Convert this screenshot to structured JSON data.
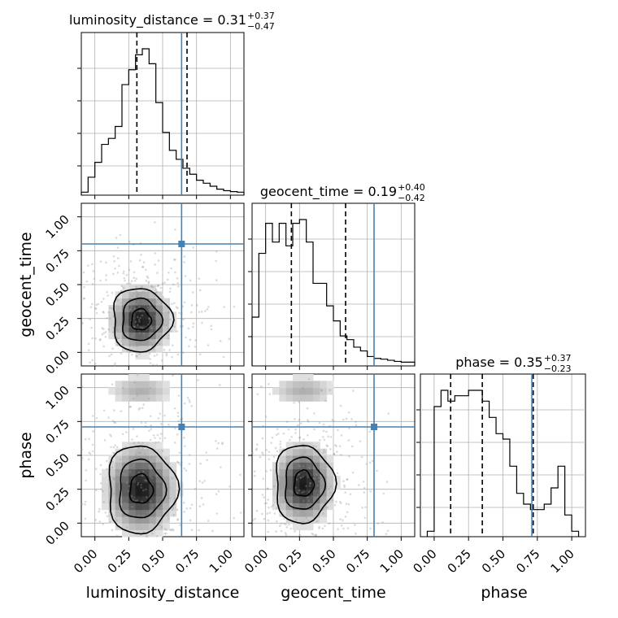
{
  "chart_data": {
    "type": "corner",
    "parameters": [
      "luminosity_distance",
      "geocent_time",
      "phase"
    ],
    "axis_range": [
      -0.1,
      1.1
    ],
    "tick_labels": [
      "0.00",
      "0.25",
      "0.50",
      "0.75",
      "1.00"
    ],
    "tick_values": [
      0.0,
      0.25,
      0.5,
      0.75,
      1.0
    ],
    "grid": true,
    "truth_color": "#4682b4",
    "truths": {
      "luminosity_distance": 0.64,
      "geocent_time": 0.8,
      "phase": 0.71
    },
    "titles": [
      {
        "param": "luminosity_distance",
        "text": "luminosity_distance = 0.31",
        "plus": "+0.37",
        "minus": "−0.47"
      },
      {
        "param": "geocent_time",
        "text": "geocent_time = 0.19",
        "plus": "+0.40",
        "minus": "−0.42"
      },
      {
        "param": "phase",
        "text": "phase = 0.35",
        "plus": "+0.37",
        "minus": "−0.23"
      }
    ],
    "marginals": [
      {
        "param": "luminosity_distance",
        "quantiles": [
          0.31,
          0.68
        ],
        "bin_edges": [
          -0.1,
          -0.05,
          0.0,
          0.05,
          0.1,
          0.15,
          0.2,
          0.25,
          0.3,
          0.35,
          0.4,
          0.45,
          0.5,
          0.55,
          0.6,
          0.65,
          0.7,
          0.75,
          0.8,
          0.85,
          0.9,
          0.95,
          1.0,
          1.05,
          1.1
        ],
        "counts": [
          1,
          6,
          11,
          17,
          19,
          23,
          37,
          42,
          47,
          49,
          44,
          31,
          21,
          15,
          12,
          9,
          7,
          5,
          4,
          3,
          2,
          1.5,
          1.2,
          1
        ]
      },
      {
        "param": "geocent_time",
        "quantiles": [
          0.19,
          0.59
        ],
        "bin_edges": [
          -0.1,
          -0.05,
          0.0,
          0.05,
          0.1,
          0.15,
          0.2,
          0.25,
          0.3,
          0.35,
          0.4,
          0.45,
          0.5,
          0.55,
          0.6,
          0.65,
          0.7,
          0.75,
          0.8,
          0.85,
          0.9,
          0.95,
          1.0,
          1.05,
          1.1
        ],
        "counts": [
          13,
          30,
          38,
          33,
          38,
          32,
          38,
          39,
          33,
          22,
          22,
          16,
          12,
          8,
          7,
          5,
          4,
          2.5,
          2,
          1.8,
          1.5,
          1.2,
          1,
          1
        ]
      },
      {
        "param": "phase",
        "quantiles": [
          0.12,
          0.35,
          0.72
        ],
        "bin_edges": [
          -0.05,
          0.0,
          0.05,
          0.1,
          0.15,
          0.2,
          0.25,
          0.3,
          0.35,
          0.4,
          0.45,
          0.5,
          0.55,
          0.6,
          0.65,
          0.7,
          0.75,
          0.8,
          0.85,
          0.9,
          0.95,
          1.0,
          1.05
        ],
        "counts": [
          1,
          24,
          27,
          25,
          26,
          26,
          27,
          27,
          25,
          22,
          19,
          18,
          13,
          8,
          6,
          5,
          5,
          6,
          9,
          13,
          4,
          1
        ]
      }
    ],
    "pairs": [
      {
        "x": "luminosity_distance",
        "y": "geocent_time",
        "mode": [
          0.34,
          0.24
        ]
      },
      {
        "x": "luminosity_distance",
        "y": "phase",
        "mode": [
          0.34,
          0.25
        ]
      },
      {
        "x": "geocent_time",
        "y": "phase",
        "mode": [
          0.28,
          0.29
        ]
      }
    ]
  }
}
